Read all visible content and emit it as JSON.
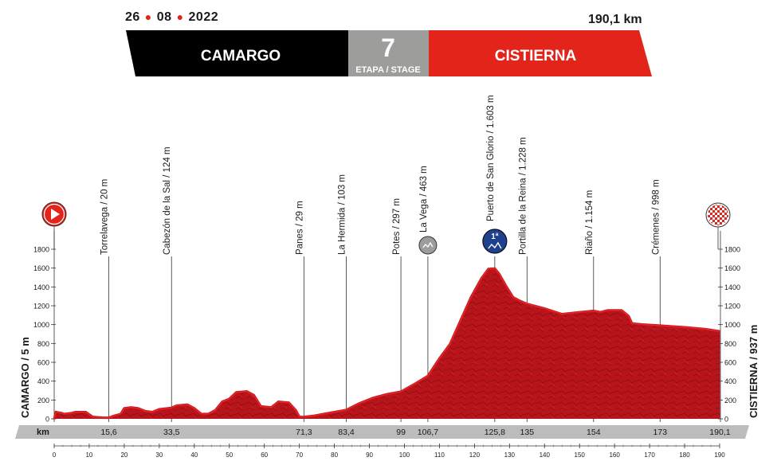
{
  "header": {
    "date_day": "26",
    "date_month": "08",
    "date_year": "2022",
    "distance": "190,1 km",
    "start_city": "CAMARGO",
    "finish_city": "CISTIERNA",
    "stage_number": "7",
    "stage_label": "ETAPA / STAGE",
    "colors": {
      "start": "#000000",
      "stage": "#9d9d9c",
      "finish": "#e3241b"
    }
  },
  "chart_data": {
    "type": "area",
    "xlabel": "km",
    "ylim": [
      0,
      1800
    ],
    "xlim": [
      0,
      190
    ],
    "y_ticks": [
      0,
      200,
      400,
      600,
      800,
      1000,
      1200,
      1400,
      1600,
      1800
    ],
    "x_ticks": [
      0,
      10,
      20,
      30,
      40,
      50,
      60,
      70,
      80,
      90,
      100,
      110,
      120,
      130,
      140,
      150,
      160,
      170,
      180,
      190
    ],
    "left_axis_label": "CAMARGO / 5 m",
    "right_axis_label": "CISTIERNA / 937 m",
    "profile_color": "#c8161d",
    "profile": [
      [
        0,
        5
      ],
      [
        0.5,
        80
      ],
      [
        2,
        70
      ],
      [
        3,
        60
      ],
      [
        5,
        70
      ],
      [
        6,
        80
      ],
      [
        9,
        80
      ],
      [
        11,
        30
      ],
      [
        14,
        20
      ],
      [
        15.6,
        20
      ],
      [
        17,
        40
      ],
      [
        19,
        60
      ],
      [
        20,
        120
      ],
      [
        22,
        130
      ],
      [
        24,
        120
      ],
      [
        26,
        90
      ],
      [
        28,
        80
      ],
      [
        30,
        110
      ],
      [
        33.5,
        124
      ],
      [
        35,
        150
      ],
      [
        38,
        160
      ],
      [
        40,
        120
      ],
      [
        42,
        60
      ],
      [
        44,
        60
      ],
      [
        46,
        100
      ],
      [
        48,
        190
      ],
      [
        50,
        220
      ],
      [
        52,
        290
      ],
      [
        55,
        300
      ],
      [
        57,
        260
      ],
      [
        59,
        140
      ],
      [
        62,
        130
      ],
      [
        64,
        190
      ],
      [
        67,
        180
      ],
      [
        69,
        100
      ],
      [
        70,
        30
      ],
      [
        71.3,
        29
      ],
      [
        74,
        40
      ],
      [
        77,
        60
      ],
      [
        80,
        80
      ],
      [
        83.4,
        103
      ],
      [
        87,
        170
      ],
      [
        91,
        230
      ],
      [
        95,
        270
      ],
      [
        99,
        297
      ],
      [
        103,
        380
      ],
      [
        106.7,
        463
      ],
      [
        110,
        650
      ],
      [
        113,
        800
      ],
      [
        116,
        1050
      ],
      [
        119,
        1300
      ],
      [
        122,
        1500
      ],
      [
        124,
        1600
      ],
      [
        125.8,
        1603
      ],
      [
        127,
        1550
      ],
      [
        129,
        1420
      ],
      [
        131,
        1300
      ],
      [
        133,
        1260
      ],
      [
        135,
        1228
      ],
      [
        140,
        1180
      ],
      [
        145,
        1120
      ],
      [
        150,
        1140
      ],
      [
        154,
        1154
      ],
      [
        156,
        1140
      ],
      [
        158,
        1160
      ],
      [
        162,
        1160
      ],
      [
        164,
        1100
      ],
      [
        165,
        1020
      ],
      [
        168,
        1010
      ],
      [
        173,
        998
      ],
      [
        180,
        980
      ],
      [
        186,
        960
      ],
      [
        190.1,
        937
      ]
    ],
    "waypoints": [
      {
        "km": 15.6,
        "km_label": "15,6",
        "label": "Torrelavega / 20 m"
      },
      {
        "km": 33.5,
        "km_label": "33,5",
        "label": "Cabezón de la Sal / 124 m"
      },
      {
        "km": 71.3,
        "km_label": "71,3",
        "label": "Panes / 29 m"
      },
      {
        "km": 83.4,
        "km_label": "83,4",
        "label": "La Hermida / 103 m"
      },
      {
        "km": 99,
        "km_label": "99",
        "label": "Potes / 297 m"
      },
      {
        "km": 106.7,
        "km_label": "106,7",
        "label": "La Vega / 463 m",
        "icon": "sprint"
      },
      {
        "km": 125.8,
        "km_label": "125,8",
        "label": "Puerto de San Glorio / 1.603 m",
        "icon": "climb",
        "icon_text": "1ª"
      },
      {
        "km": 135,
        "km_label": "135",
        "label": "Portilla de la Reina / 1.228 m"
      },
      {
        "km": 154,
        "km_label": "154",
        "label": "Riaño / 1.154 m"
      },
      {
        "km": 173,
        "km_label": "173",
        "label": "Crémenes / 998 m"
      },
      {
        "km": 190.1,
        "km_label": "190,1",
        "label": ""
      }
    ],
    "start_icon": "play-icon",
    "finish_icon": "checkered-flag-icon"
  }
}
